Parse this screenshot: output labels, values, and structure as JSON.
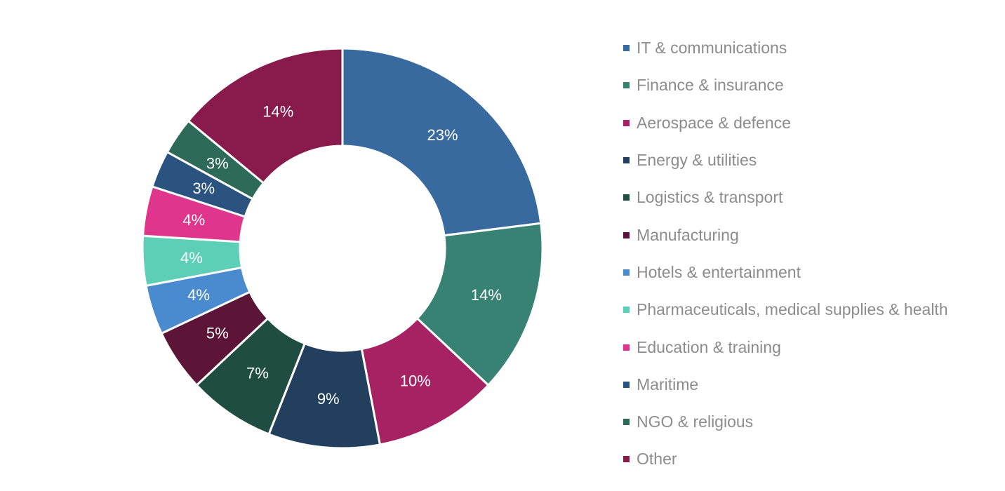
{
  "chart_data": {
    "type": "pie",
    "variant": "donut",
    "legend_position": "right",
    "title": "",
    "series": [
      {
        "name": "IT & communications",
        "value": 23,
        "label": "23%",
        "color": "#386a9f"
      },
      {
        "name": "Finance & insurance",
        "value": 14,
        "label": "14%",
        "color": "#378272"
      },
      {
        "name": "Aerospace & defence",
        "value": 10,
        "label": "10%",
        "color": "#a62263"
      },
      {
        "name": "Energy & utilities",
        "value": 9,
        "label": "9%",
        "color": "#223f5e"
      },
      {
        "name": "Logistics & transport",
        "value": 7,
        "label": "7%",
        "color": "#1f4d42"
      },
      {
        "name": "Manufacturing",
        "value": 5,
        "label": "5%",
        "color": "#5c1537"
      },
      {
        "name": "Hotels & entertainment",
        "value": 4,
        "label": "4%",
        "color": "#4a8bd0"
      },
      {
        "name": "Pharmaceuticals, medical supplies & health",
        "value": 4,
        "label": "4%",
        "color": "#5ecfb7"
      },
      {
        "name": "Education & training",
        "value": 4,
        "label": "4%",
        "color": "#df358c"
      },
      {
        "name": "Maritime",
        "value": 3,
        "label": "3%",
        "color": "#2a5380"
      },
      {
        "name": "NGO & religious",
        "value": 3,
        "label": "3%",
        "color": "#2d6a59"
      },
      {
        "name": "Other",
        "value": 14,
        "label": "14%",
        "color": "#881b4c"
      }
    ]
  }
}
